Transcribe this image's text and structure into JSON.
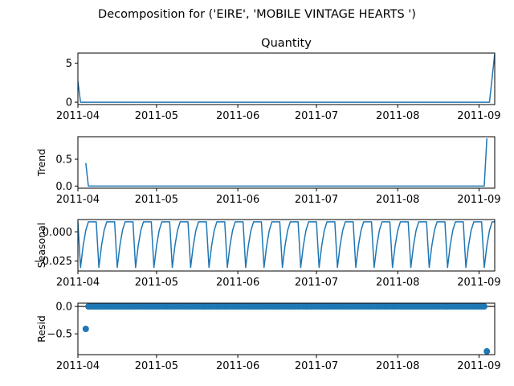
{
  "figure": {
    "suptitle": "Decomposition for ('EIRE', 'MOBILE VINTAGE HEARTS ')",
    "series_color": "#1f77b4"
  },
  "chart_data": [
    {
      "type": "line",
      "title": "Quantity",
      "ylabel": "",
      "xlim": [
        "2011-04-01",
        "2011-09-07"
      ],
      "ylim": [
        -0.3,
        6.3
      ],
      "yticks": [
        {
          "v": 0,
          "label": "0"
        },
        {
          "v": 5,
          "label": "5"
        }
      ],
      "xticks": [
        {
          "date": "2011-04-01",
          "label": "2011-04"
        },
        {
          "date": "2011-05-01",
          "label": "2011-05"
        },
        {
          "date": "2011-06-01",
          "label": "2011-06"
        },
        {
          "date": "2011-07-01",
          "label": "2011-07"
        },
        {
          "date": "2011-08-01",
          "label": "2011-08"
        },
        {
          "date": "2011-09-01",
          "label": "2011-09"
        }
      ],
      "x": [
        "2011-04-01",
        "2011-04-02",
        "2011-09-05",
        "2011-09-07"
      ],
      "y": [
        2.7,
        0,
        0,
        6.2
      ]
    },
    {
      "type": "line",
      "title": "",
      "ylabel": "Trend",
      "xlim": [
        "2011-04-01",
        "2011-09-07"
      ],
      "ylim": [
        -0.04,
        0.92
      ],
      "yticks": [
        {
          "v": 0,
          "label": "0.0"
        },
        {
          "v": 0.5,
          "label": "0.5"
        }
      ],
      "xticks": [
        {
          "date": "2011-04-01",
          "label": "2011-04"
        },
        {
          "date": "2011-05-01",
          "label": "2011-05"
        },
        {
          "date": "2011-06-01",
          "label": "2011-06"
        },
        {
          "date": "2011-07-01",
          "label": "2011-07"
        },
        {
          "date": "2011-08-01",
          "label": "2011-08"
        },
        {
          "date": "2011-09-01",
          "label": "2011-09"
        }
      ],
      "x": [
        "2011-04-04",
        "2011-04-05",
        "2011-09-03",
        "2011-09-04"
      ],
      "y": [
        0.43,
        0,
        0,
        0.89
      ]
    },
    {
      "type": "line",
      "title": "",
      "ylabel": "Seasonal",
      "xlim": [
        "2011-04-01",
        "2011-09-07"
      ],
      "ylim": [
        -0.0335,
        0.0105
      ],
      "yticks": [
        {
          "v": 0,
          "label": "0.000"
        },
        {
          "v": -0.025,
          "label": "−0.025"
        }
      ],
      "xticks": [
        {
          "date": "2011-04-01",
          "label": "2011-04"
        },
        {
          "date": "2011-05-01",
          "label": "2011-05"
        },
        {
          "date": "2011-06-01",
          "label": "2011-06"
        },
        {
          "date": "2011-07-01",
          "label": "2011-07"
        },
        {
          "date": "2011-08-01",
          "label": "2011-08"
        },
        {
          "date": "2011-09-01",
          "label": "2011-09"
        }
      ],
      "period_days": 7,
      "start": "2011-04-01",
      "end": "2011-09-07",
      "pattern": [
        0.0085,
        -0.0305,
        -0.012,
        0.0012,
        0.0085,
        0.0085,
        0.0085
      ]
    },
    {
      "type": "scatter",
      "title": "",
      "ylabel": "Resid",
      "xlim": [
        "2011-04-01",
        "2011-09-07"
      ],
      "ylim": [
        -0.88,
        0.06
      ],
      "yticks": [
        {
          "v": 0,
          "label": "0.0"
        },
        {
          "v": -0.5,
          "label": "−0.5"
        }
      ],
      "xticks": [
        {
          "date": "2011-04-01",
          "label": "2011-04"
        },
        {
          "date": "2011-05-01",
          "label": "2011-05"
        },
        {
          "date": "2011-06-01",
          "label": "2011-06"
        },
        {
          "date": "2011-07-01",
          "label": "2011-07"
        },
        {
          "date": "2011-08-01",
          "label": "2011-08"
        },
        {
          "date": "2011-09-01",
          "label": "2011-09"
        }
      ],
      "first_point": {
        "x": "2011-04-04",
        "y": -0.41
      },
      "zero_run": {
        "start": "2011-04-05",
        "end": "2011-09-03",
        "y": 0
      },
      "last_point": {
        "x": "2011-09-04",
        "y": -0.82
      }
    }
  ]
}
